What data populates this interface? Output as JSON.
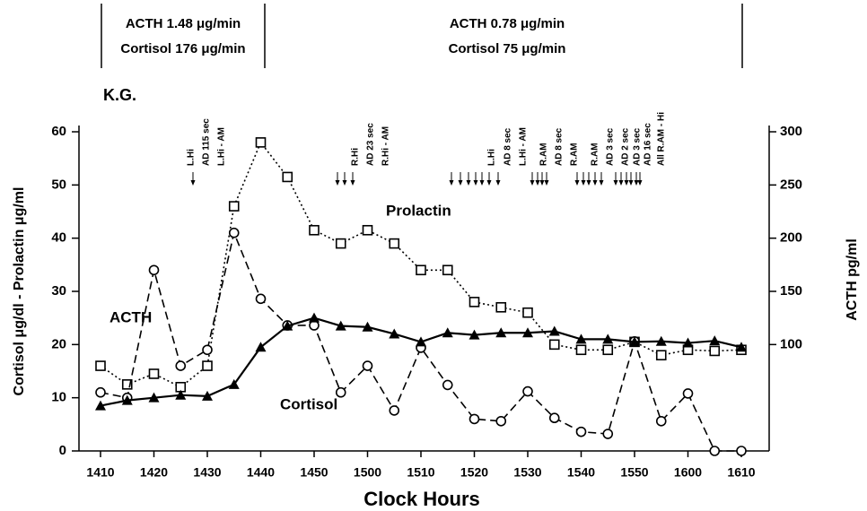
{
  "chart_data": {
    "type": "line",
    "title": "K.G.",
    "header_notes": [
      [
        "ACTH 1.48 μg/min",
        "Cortisol 176 μg/min"
      ],
      [
        "ACTH 0.78 μg/min",
        "Cortisol 75 μg/min"
      ]
    ],
    "annotations": [
      "L.Hi",
      "AD 115 sec",
      "L.Hi - AM",
      "R.Hi",
      "AD 23 sec",
      "R.Hi - AM",
      "L.Hi",
      "AD 8 sec",
      "L.Hi - AM",
      "R.AM",
      "AD 8 sec",
      "R.AM",
      "R.AM",
      "AD 3 sec",
      "AD 2 sec",
      "AD 3 sec",
      "AD 16 sec",
      "All R.AM - Hi"
    ],
    "x_label": "Clock Hours",
    "y_label": "Cortisol μg/dl - Prolactin μg/ml",
    "y2_label": "ACTH pg/ml",
    "x": [
      1410,
      1415,
      1420,
      1425,
      1430,
      1435,
      1440,
      1445,
      1450,
      1455,
      1500,
      1505,
      1510,
      1515,
      1520,
      1525,
      1530,
      1535,
      1540,
      1545,
      1550,
      1555,
      1600,
      1605,
      1610
    ],
    "xlim": [
      1410,
      1610
    ],
    "xticks": [
      1410,
      1420,
      1430,
      1440,
      1450,
      1500,
      1510,
      1520,
      1530,
      1540,
      1550,
      1600,
      1610
    ],
    "ylim": [
      0,
      60
    ],
    "yticks": [
      0,
      10,
      20,
      30,
      40,
      50,
      60
    ],
    "y2lim": [
      0,
      300
    ],
    "y2ticks": [
      100,
      150,
      200,
      250,
      300
    ],
    "series": [
      {
        "name": "Prolactin",
        "color": "#000000",
        "marker": "square",
        "line": "dotted",
        "values": [
          16,
          12.5,
          14.5,
          12,
          16,
          46,
          58,
          51.5,
          41.5,
          39,
          41.5,
          39,
          34,
          34,
          28,
          27,
          26,
          20,
          19,
          19,
          20.5,
          18,
          19,
          18.8,
          19
        ]
      },
      {
        "name": "ACTH",
        "color": "#000000",
        "marker": "circle",
        "line": "dashed",
        "axis": "y2",
        "values": [
          55,
          50,
          170,
          80,
          95,
          205,
          143,
          118,
          118,
          55,
          80,
          38,
          97,
          62,
          30,
          28,
          56,
          31,
          18,
          16,
          103,
          28,
          54,
          0,
          0
        ]
      },
      {
        "name": "Cortisol",
        "color": "#000000",
        "marker": "triangle",
        "line": "solid",
        "values": [
          8.5,
          9.5,
          10,
          10.5,
          10.3,
          12.5,
          19.5,
          23.5,
          25,
          23.5,
          23.3,
          22,
          20.5,
          22.2,
          21.8,
          22.2,
          22.2,
          22.5,
          21,
          21,
          20.5,
          20.6,
          20.3,
          20.7,
          19.5
        ]
      }
    ]
  }
}
